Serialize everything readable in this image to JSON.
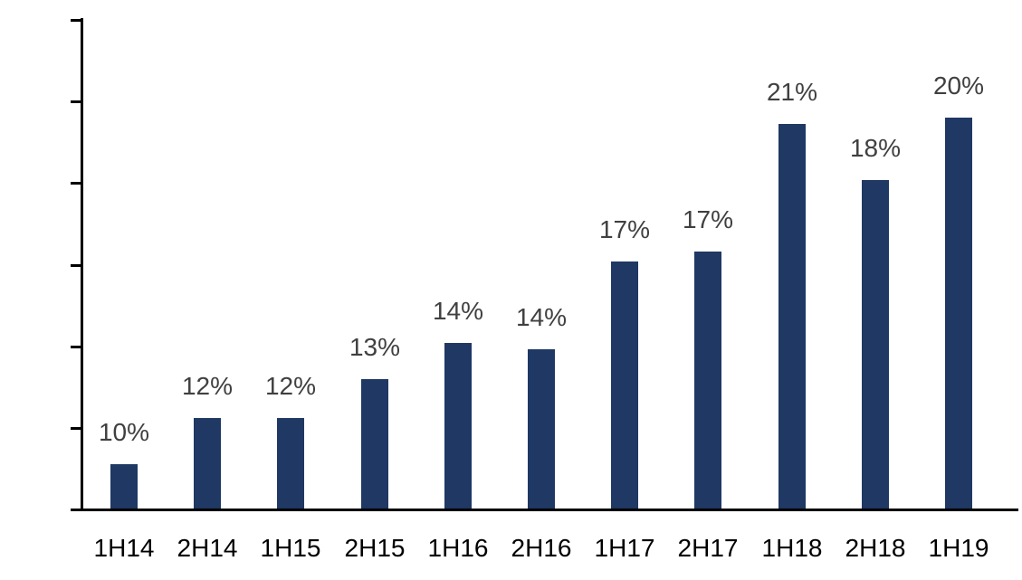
{
  "chart_data": {
    "type": "bar",
    "title": "",
    "xlabel": "",
    "ylabel": "",
    "categories": [
      "1H14",
      "2H14",
      "1H15",
      "2H15",
      "1H16",
      "2H16",
      "1H17",
      "2H17",
      "1H18",
      "2H18",
      "1H19"
    ],
    "values": [
      64,
      78,
      78,
      90,
      101,
      99,
      126,
      129,
      168,
      151,
      170
    ],
    "data_labels": [
      "10%",
      "12%",
      "12%",
      "13%",
      "14%",
      "14%",
      "17%",
      "17%",
      "21%",
      "18%",
      "20%"
    ],
    "ylim": [
      50,
      200
    ],
    "yticks": [
      50,
      75,
      100,
      125,
      150,
      175,
      200
    ],
    "grid": false,
    "legend": null,
    "bar_color": "#1F3864",
    "data_label_color": "#404040",
    "axis_color": "#000000"
  }
}
